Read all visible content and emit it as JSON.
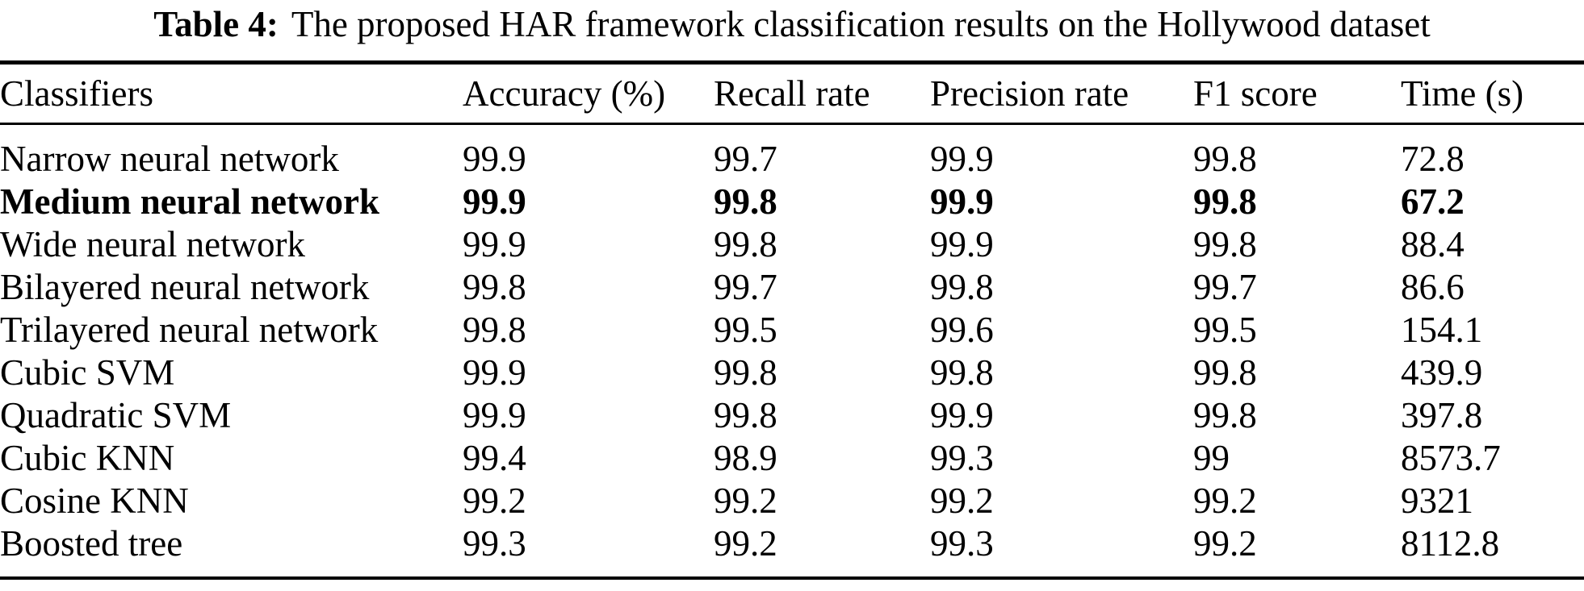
{
  "page": {
    "background": "#ffffff",
    "text_color": "#000000",
    "rule_color": "#000000"
  },
  "caption": {
    "label": "Table 4:",
    "text": "The proposed HAR framework classification results on the Hollywood dataset"
  },
  "table": {
    "headers": [
      "Classifiers",
      "Accuracy (%)",
      "Recall rate",
      "Precision rate",
      "F1 score",
      "Time (s)"
    ],
    "column_keys": [
      "classifier",
      "accuracy",
      "recall",
      "precision",
      "f1",
      "time"
    ],
    "rows": [
      {
        "classifier": "Narrow neural network",
        "accuracy": "99.9",
        "recall": "99.7",
        "precision": "99.9",
        "f1": "99.8",
        "time": "72.8",
        "bold": false
      },
      {
        "classifier": "Medium neural network",
        "accuracy": "99.9",
        "recall": "99.8",
        "precision": "99.9",
        "f1": "99.8",
        "time": "67.2",
        "bold": true
      },
      {
        "classifier": "Wide neural network",
        "accuracy": "99.9",
        "recall": "99.8",
        "precision": "99.9",
        "f1": "99.8",
        "time": "88.4",
        "bold": false
      },
      {
        "classifier": "Bilayered neural network",
        "accuracy": "99.8",
        "recall": "99.7",
        "precision": "99.8",
        "f1": "99.7",
        "time": "86.6",
        "bold": false
      },
      {
        "classifier": "Trilayered neural network",
        "accuracy": "99.8",
        "recall": "99.5",
        "precision": "99.6",
        "f1": "99.5",
        "time": "154.1",
        "bold": false
      },
      {
        "classifier": "Cubic SVM",
        "accuracy": "99.9",
        "recall": "99.8",
        "precision": "99.8",
        "f1": "99.8",
        "time": "439.9",
        "bold": false
      },
      {
        "classifier": "Quadratic SVM",
        "accuracy": "99.9",
        "recall": "99.8",
        "precision": "99.9",
        "f1": "99.8",
        "time": "397.8",
        "bold": false
      },
      {
        "classifier": "Cubic KNN",
        "accuracy": "99.4",
        "recall": "98.9",
        "precision": "99.3",
        "f1": "99",
        "time": "8573.7",
        "bold": false
      },
      {
        "classifier": "Cosine KNN",
        "accuracy": "99.2",
        "recall": "99.2",
        "precision": "99.2",
        "f1": "99.2",
        "time": "9321",
        "bold": false
      },
      {
        "classifier": "Boosted tree",
        "accuracy": "99.3",
        "recall": "99.2",
        "precision": "99.3",
        "f1": "99.2",
        "time": "8112.8",
        "bold": false
      }
    ]
  }
}
